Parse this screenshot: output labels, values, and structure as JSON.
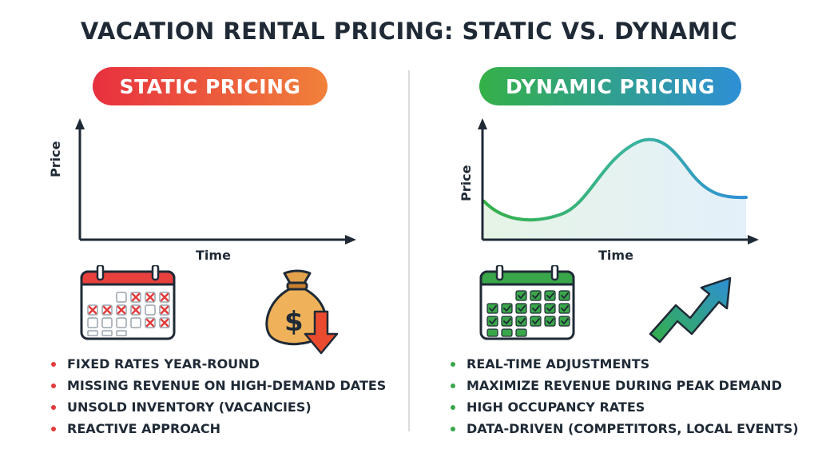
{
  "title": "VACATION RENTAL PRICING: STATIC VS. DYNAMIC",
  "static": {
    "heading": "STATIC PRICING",
    "ylabel": "Price",
    "xlabel": "Time",
    "points": [
      "FIXED RATES YEAR-ROUND",
      "MISSING REVENUE ON HIGH-DEMAND DATES",
      "UNSOLD INVENTORY (VACANCIES)",
      "REACTIVE APPROACH"
    ],
    "colors": {
      "start": "#e8303f",
      "end": "#f0813a"
    },
    "icons": [
      "calendar-icon",
      "money-bag-icon",
      "down-arrow-icon"
    ]
  },
  "dynamic": {
    "heading": "DYNAMIC PRICING",
    "ylabel": "Price",
    "xlabel": "Time",
    "points": [
      "REAL-TIME ADJUSTMENTS",
      "MAXIMIZE REVENUE DURING PEAK DEMAND",
      "HIGH OCCUPANCY RATES",
      "DATA-DRIVEN (COMPETITORS, LOCAL EVENTS)"
    ],
    "colors": {
      "start": "#34b047",
      "end": "#2e8fd6"
    },
    "icons": [
      "calendar-icon",
      "up-trend-arrow-icon"
    ]
  },
  "money_symbol": "$"
}
